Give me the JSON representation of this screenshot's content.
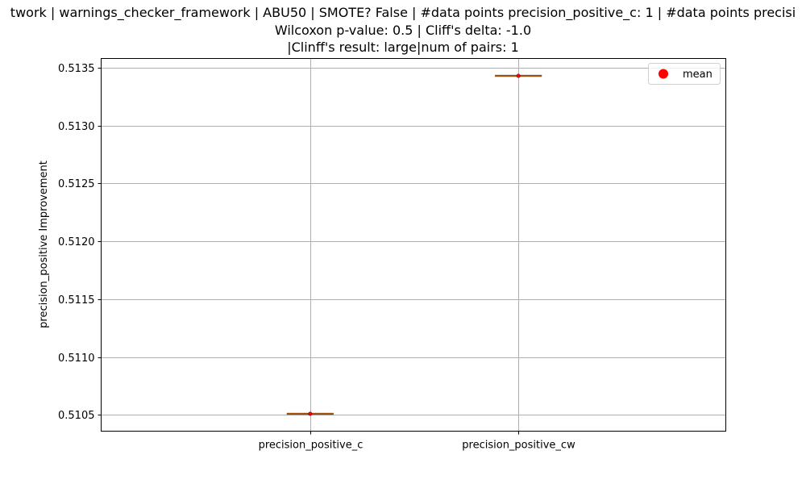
{
  "chart_data": {
    "type": "box",
    "title_lines": [
      "twork | warnings_checker_framework | ABU50 | SMOTE? False | #data points precision_positive_c: 1 | #data points precisi",
      "Wilcoxon p-value: 0.5 | Cliff's delta: -1.0",
      "|Clinff's result: large|num of pairs: 1"
    ],
    "ylabel": "precision_positive Improvement",
    "xlabel": "",
    "categories": [
      "precision_positive_c",
      "precision_positive_cw"
    ],
    "values": [
      0.51051,
      0.51343
    ],
    "means": [
      0.51051,
      0.51343
    ],
    "ylim": [
      0.51036,
      0.51358
    ],
    "yticks": [
      0.5105,
      0.511,
      0.5115,
      0.512,
      0.5125,
      0.513,
      0.5135
    ],
    "ytick_labels": [
      "0.5105",
      "0.5110",
      "0.5115",
      "0.5120",
      "0.5125",
      "0.5130",
      "0.5135"
    ],
    "grid": true,
    "legend": {
      "position": "top-right",
      "entries": [
        {
          "label": "mean",
          "marker": "circle",
          "color": "#ff0000"
        }
      ]
    },
    "colors": {
      "median": "#ff7f0e",
      "mean": "#ff0000",
      "grid": "#b0b0b0"
    }
  }
}
